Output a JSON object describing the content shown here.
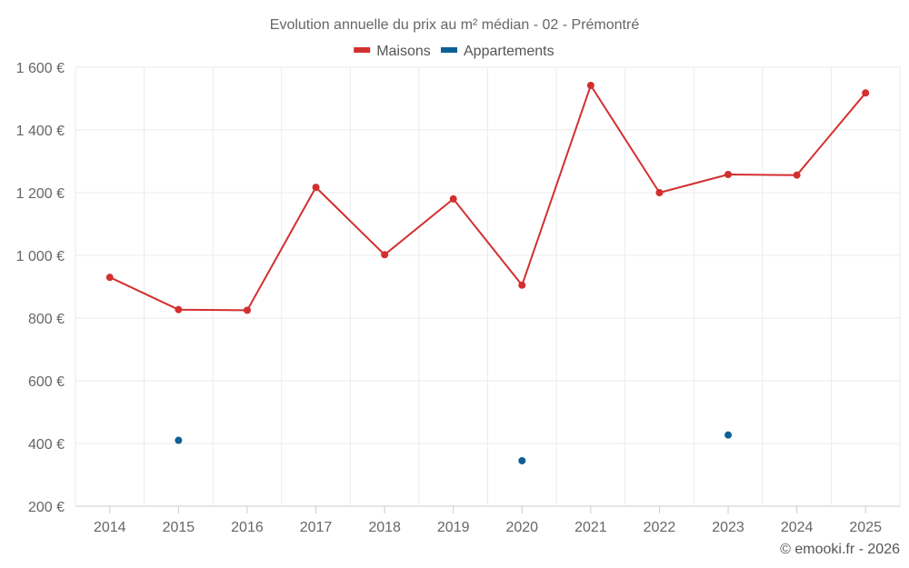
{
  "chart_data": {
    "type": "line",
    "title": "Evolution annuelle du prix au m² médian - 02 - Prémontré",
    "categories": [
      "2014",
      "2015",
      "2016",
      "2017",
      "2018",
      "2019",
      "2020",
      "2021",
      "2022",
      "2023",
      "2024",
      "2025"
    ],
    "series": [
      {
        "name": "Maisons",
        "color": "#d32f2f",
        "values": [
          930,
          827,
          825,
          1217,
          1002,
          1180,
          905,
          1542,
          1200,
          1258,
          1256,
          1518
        ]
      },
      {
        "name": "Appartements",
        "color": "#0d6096",
        "values": [
          null,
          410,
          null,
          null,
          null,
          null,
          345,
          null,
          null,
          427,
          null,
          null
        ]
      }
    ],
    "ylim": [
      200,
      1600
    ],
    "yticks": [
      200,
      400,
      600,
      800,
      1000,
      1200,
      1400,
      1600
    ],
    "ytick_labels": [
      "200 €",
      "400 €",
      "600 €",
      "800 €",
      "1 000 €",
      "1 200 €",
      "1 400 €",
      "1 600 €"
    ],
    "grid": true,
    "legend_position": "top-center",
    "credit": "© emooki.fr - 2026"
  }
}
